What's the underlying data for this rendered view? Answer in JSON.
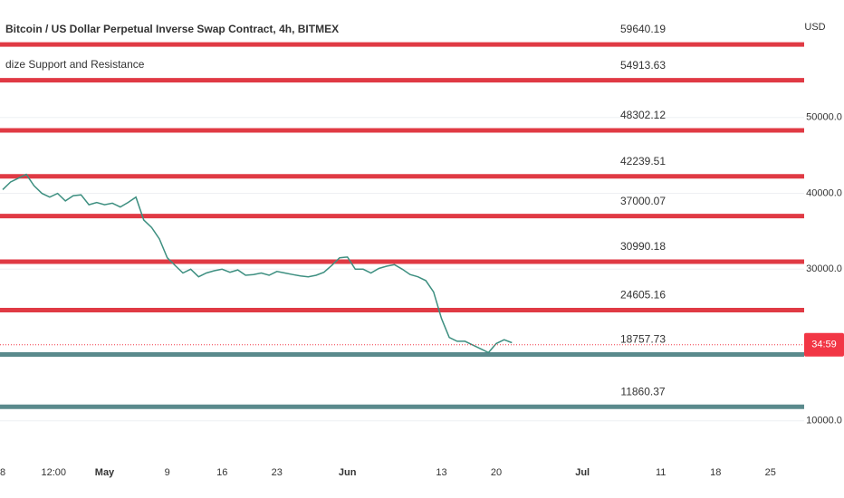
{
  "chart_data": {
    "type": "line",
    "title": "Bitcoin / US Dollar Perpetual Inverse Swap Contract, 4h, BITMEX",
    "indicator": "dize Support and Resistance",
    "currency": "USD",
    "countdown": "34:59",
    "current_price": 20030,
    "current_price_color": "#f23645",
    "xlim": [
      -0.35,
      102.3
    ],
    "xticks": [
      {
        "value": 0,
        "label": "8"
      },
      {
        "value": 6.5,
        "label": "12:00"
      },
      {
        "value": 13,
        "label": "May"
      },
      {
        "value": 21,
        "label": "9"
      },
      {
        "value": 28,
        "label": "16"
      },
      {
        "value": 35,
        "label": "23"
      },
      {
        "value": 44,
        "label": "Jun"
      },
      {
        "value": 56,
        "label": "13"
      },
      {
        "value": 63,
        "label": "20"
      },
      {
        "value": 74,
        "label": "Jul"
      },
      {
        "value": 84,
        "label": "11"
      },
      {
        "value": 91,
        "label": "18"
      },
      {
        "value": 98,
        "label": "25"
      }
    ],
    "ylim": [
      5200,
      65500
    ],
    "yticks": [
      {
        "value": 10000,
        "label": "10000.0"
      },
      {
        "value": 30000,
        "label": "30000.0"
      },
      {
        "value": 40000,
        "label": "40000.0"
      },
      {
        "value": 50000,
        "label": "50000.0"
      }
    ],
    "grid": true,
    "x": [
      0,
      1,
      2,
      3,
      4,
      5,
      6,
      7,
      8,
      9,
      10,
      11,
      12,
      13,
      14,
      15,
      16,
      17,
      18,
      19,
      20,
      21,
      22,
      23,
      24,
      25,
      26,
      27,
      28,
      29,
      30,
      31,
      32,
      33,
      34,
      35,
      36,
      37,
      38,
      39,
      40,
      41,
      42,
      43,
      44,
      45,
      46,
      47,
      48,
      49,
      50,
      51,
      52,
      53,
      54,
      55,
      56,
      57,
      58,
      59,
      60,
      61,
      62,
      63,
      64,
      65
    ],
    "series": [
      {
        "name": "Bitcoin / US Dollar",
        "color": "#3d8f80",
        "values": [
          40500,
          41500,
          42000,
          42500,
          41000,
          40000,
          39500,
          40000,
          39000,
          39700,
          39800,
          38500,
          38800,
          38500,
          38700,
          38200,
          38800,
          39500,
          36500,
          35500,
          34000,
          31500,
          30500,
          29500,
          30000,
          29000,
          29500,
          29800,
          30000,
          29600,
          29900,
          29200,
          29300,
          29500,
          29200,
          29700,
          29500,
          29300,
          29100,
          29000,
          29200,
          29600,
          30500,
          31500,
          31600,
          30000,
          30000,
          29500,
          30100,
          30400,
          30600,
          30000,
          29300,
          29000,
          28500,
          27000,
          23500,
          21000,
          20500,
          20500,
          20000,
          19500,
          19000,
          20200,
          20700,
          20300
        ]
      }
    ],
    "levels": [
      {
        "value": 59640.19,
        "color": "#e03a44"
      },
      {
        "value": 54913.63,
        "color": "#e03a44"
      },
      {
        "value": 48302.12,
        "color": "#e03a44"
      },
      {
        "value": 42239.51,
        "color": "#e03a44"
      },
      {
        "value": 37000.07,
        "color": "#e03a44"
      },
      {
        "value": 30990.18,
        "color": "#e03a44"
      },
      {
        "value": 24605.16,
        "color": "#e03a44"
      },
      {
        "value": 18757.73,
        "color": "#5a8a8c"
      },
      {
        "value": 11860.37,
        "color": "#5a8a8c"
      }
    ]
  }
}
